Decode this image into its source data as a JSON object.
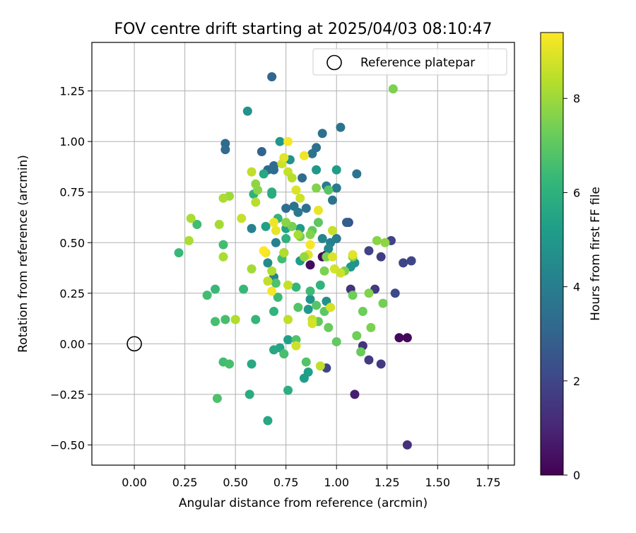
{
  "chart_data": {
    "type": "scatter",
    "title": "FOV centre drift starting at 2025/04/03 08:10:47",
    "xlabel": "Angular distance from reference (arcmin)",
    "ylabel": "Rotation from reference (arcmin)",
    "xlim": [
      -0.21,
      1.88
    ],
    "ylim": [
      -0.6,
      1.49
    ],
    "x_ticks": [
      0.0,
      0.25,
      0.5,
      0.75,
      1.0,
      1.25,
      1.5,
      1.75
    ],
    "x_tick_labels": [
      "0.00",
      "0.25",
      "0.50",
      "0.75",
      "1.00",
      "1.25",
      "1.50",
      "1.75"
    ],
    "y_ticks": [
      -0.5,
      -0.25,
      0.0,
      0.25,
      0.5,
      0.75,
      1.0,
      1.25
    ],
    "y_tick_labels": [
      "−0.50",
      "−0.25",
      "0.00",
      "0.25",
      "0.50",
      "0.75",
      "1.00",
      "1.25"
    ],
    "grid": true,
    "legend": {
      "placement": "top-right",
      "entries": [
        {
          "label": "Reference platepar",
          "marker": "open-circle"
        }
      ]
    },
    "reference_point": {
      "x": 0.0,
      "y": 0.0
    },
    "colorbar": {
      "label": "Hours from first FF file",
      "colormap": "viridis",
      "range": [
        0,
        9.4
      ],
      "ticks": [
        0,
        2,
        4,
        6,
        8
      ],
      "tick_labels": [
        "0",
        "2",
        "4",
        "6",
        "8"
      ]
    },
    "colormap_stops": [
      "#440154",
      "#482878",
      "#3e4989",
      "#31688e",
      "#26828e",
      "#1f9e89",
      "#35b779",
      "#6ece58",
      "#b5de2b",
      "#fde725"
    ],
    "series": [
      {
        "points": [
          [
            0.93,
            0.43,
            0.3
          ],
          [
            0.95,
            0.44,
            0.3
          ],
          [
            1.31,
            0.03,
            0.2
          ],
          [
            1.35,
            0.03,
            0.2
          ],
          [
            1.09,
            -0.25,
            0.8
          ],
          [
            1.35,
            -0.5,
            1.3
          ],
          [
            1.07,
            0.27,
            1.4
          ],
          [
            1.13,
            -0.01,
            1.4
          ],
          [
            1.16,
            -0.08,
            1.6
          ],
          [
            1.22,
            -0.1,
            1.6
          ],
          [
            1.19,
            0.27,
            1.6
          ],
          [
            1.22,
            0.43,
            1.7
          ],
          [
            1.16,
            0.46,
            1.9
          ],
          [
            1.27,
            0.51,
            1.9
          ],
          [
            1.33,
            0.4,
            2.0
          ],
          [
            1.37,
            0.41,
            2.0
          ],
          [
            1.29,
            0.25,
            2.1
          ],
          [
            0.95,
            -0.12,
            2.0
          ],
          [
            1.06,
            0.6,
            2.3
          ],
          [
            0.68,
            1.32,
            3.1
          ],
          [
            0.45,
            0.99,
            3.2
          ],
          [
            0.45,
            0.96,
            3.3
          ],
          [
            0.63,
            0.95,
            3.0
          ],
          [
            0.66,
            0.86,
            3.2
          ],
          [
            0.69,
            0.88,
            3.3
          ],
          [
            0.83,
            0.82,
            3.3
          ],
          [
            0.88,
            0.94,
            3.6
          ],
          [
            0.9,
            0.97,
            3.5
          ],
          [
            0.93,
            1.04,
            3.5
          ],
          [
            1.02,
            1.07,
            3.6
          ],
          [
            1.1,
            0.84,
            3.6
          ],
          [
            0.95,
            0.78,
            3.8
          ],
          [
            1.0,
            0.77,
            3.9
          ],
          [
            0.98,
            0.71,
            3.6
          ],
          [
            0.69,
            0.86,
            3.3
          ],
          [
            0.75,
            0.67,
            3.4
          ],
          [
            0.79,
            0.68,
            3.6
          ],
          [
            0.85,
            0.67,
            3.5
          ],
          [
            0.81,
            0.65,
            3.8
          ],
          [
            0.87,
            0.39,
            0.3
          ],
          [
            1.0,
            0.52,
            3.9
          ],
          [
            1.05,
            0.6,
            2.8
          ],
          [
            0.97,
            0.5,
            4.1
          ],
          [
            0.93,
            0.52,
            4.3
          ],
          [
            0.96,
            0.47,
            4.4
          ],
          [
            0.74,
            0.45,
            3.9
          ],
          [
            0.7,
            0.5,
            4.1
          ],
          [
            0.69,
            0.33,
            4.2
          ],
          [
            0.58,
            0.57,
            4.2
          ],
          [
            0.66,
            0.4,
            4.5
          ],
          [
            0.87,
            0.22,
            4.8
          ],
          [
            0.95,
            0.21,
            4.7
          ],
          [
            1.09,
            0.4,
            4.8
          ],
          [
            1.07,
            0.38,
            4.9
          ],
          [
            0.56,
            1.15,
            4.8
          ],
          [
            0.77,
            0.91,
            4.8
          ],
          [
            0.9,
            0.86,
            5.0
          ],
          [
            1.0,
            0.86,
            5.2
          ],
          [
            0.72,
            1.0,
            5.0
          ],
          [
            0.65,
            0.58,
            5.3
          ],
          [
            0.75,
            0.57,
            5.4
          ],
          [
            0.82,
            0.57,
            5.1
          ],
          [
            0.82,
            0.41,
            5.2
          ],
          [
            0.86,
            0.17,
            5.0
          ],
          [
            0.86,
            -0.14,
            5.3
          ],
          [
            0.84,
            -0.17,
            5.2
          ],
          [
            0.76,
            0.02,
            5.3
          ],
          [
            0.72,
            -0.02,
            5.5
          ],
          [
            0.69,
            -0.03,
            5.6
          ],
          [
            0.66,
            -0.38,
            5.6
          ],
          [
            0.58,
            -0.1,
            5.7
          ],
          [
            0.57,
            -0.25,
            5.8
          ],
          [
            0.76,
            -0.23,
            5.9
          ],
          [
            0.64,
            0.84,
            5.6
          ],
          [
            0.59,
            0.74,
            6.0
          ],
          [
            0.68,
            0.75,
            5.9
          ],
          [
            0.68,
            0.74,
            5.8
          ],
          [
            0.75,
            0.52,
            6.0
          ],
          [
            0.71,
            0.62,
            6.1
          ],
          [
            0.6,
            0.12,
            6.2
          ],
          [
            0.92,
            0.29,
            6.1
          ],
          [
            0.87,
            0.26,
            6.4
          ],
          [
            0.69,
            0.16,
            6.1
          ],
          [
            0.71,
            0.23,
            6.4
          ],
          [
            0.8,
            0.28,
            6.2
          ],
          [
            0.73,
            0.42,
            6.5
          ],
          [
            0.54,
            0.27,
            6.3
          ],
          [
            0.4,
            0.27,
            6.3
          ],
          [
            0.36,
            0.24,
            6.5
          ],
          [
            0.4,
            0.11,
            6.6
          ],
          [
            0.45,
            0.12,
            6.6
          ],
          [
            0.44,
            0.49,
            6.5
          ],
          [
            0.31,
            0.59,
            6.5
          ],
          [
            0.22,
            0.45,
            6.3
          ],
          [
            0.44,
            -0.09,
            6.5
          ],
          [
            0.47,
            -0.1,
            6.6
          ],
          [
            0.41,
            -0.27,
            6.7
          ],
          [
            0.7,
            0.3,
            6.7
          ],
          [
            0.74,
            -0.05,
            6.6
          ],
          [
            0.8,
            0.02,
            6.8
          ],
          [
            0.85,
            -0.09,
            6.8
          ],
          [
            0.81,
            0.18,
            6.8
          ],
          [
            0.9,
            0.19,
            6.9
          ],
          [
            0.94,
            0.16,
            7.0
          ],
          [
            0.91,
            0.11,
            7.1
          ],
          [
            1.0,
            0.01,
            7.1
          ],
          [
            1.12,
            -0.04,
            7.2
          ],
          [
            1.1,
            0.04,
            7.3
          ],
          [
            1.13,
            0.16,
            7.3
          ],
          [
            1.17,
            0.08,
            7.5
          ],
          [
            1.23,
            0.2,
            7.4
          ],
          [
            1.16,
            0.25,
            7.6
          ],
          [
            1.08,
            0.24,
            7.3
          ],
          [
            0.96,
            0.08,
            7.2
          ],
          [
            0.94,
            0.36,
            7.5
          ],
          [
            1.04,
            0.36,
            7.5
          ],
          [
            1.08,
            0.43,
            7.6
          ],
          [
            0.95,
            0.43,
            7.5
          ],
          [
            1.2,
            0.51,
            7.7
          ],
          [
            1.24,
            0.5,
            7.8
          ],
          [
            1.28,
            1.26,
            7.5
          ],
          [
            0.91,
            0.6,
            7.0
          ],
          [
            0.88,
            0.56,
            7.1
          ],
          [
            0.87,
            0.54,
            7.6
          ],
          [
            0.82,
            0.53,
            7.4
          ],
          [
            0.78,
            0.58,
            7.4
          ],
          [
            0.75,
            0.6,
            7.7
          ],
          [
            0.61,
            0.76,
            7.7
          ],
          [
            0.6,
            0.79,
            7.8
          ],
          [
            0.47,
            0.73,
            8.0
          ],
          [
            0.44,
            0.72,
            8.2
          ],
          [
            0.42,
            0.59,
            8.1
          ],
          [
            0.28,
            0.62,
            8.2
          ],
          [
            0.27,
            0.51,
            8.2
          ],
          [
            0.5,
            0.12,
            8.3
          ],
          [
            0.58,
            0.37,
            8.1
          ],
          [
            0.68,
            0.36,
            8.3
          ],
          [
            0.74,
            0.45,
            8.3
          ],
          [
            0.66,
            0.31,
            8.5
          ],
          [
            0.76,
            0.29,
            8.6
          ],
          [
            0.76,
            0.12,
            8.5
          ],
          [
            0.8,
            -0.01,
            8.7
          ],
          [
            0.88,
            0.12,
            8.6
          ],
          [
            0.88,
            0.1,
            8.8
          ],
          [
            0.97,
            0.18,
            8.8
          ],
          [
            0.99,
            0.37,
            8.8
          ],
          [
            1.02,
            0.35,
            8.7
          ],
          [
            0.98,
            0.43,
            8.9
          ],
          [
            1.08,
            0.44,
            9.0
          ],
          [
            0.92,
            -0.11,
            8.5
          ],
          [
            0.76,
            0.85,
            8.6
          ],
          [
            0.78,
            0.82,
            8.4
          ],
          [
            0.73,
            0.89,
            8.7
          ],
          [
            0.74,
            0.92,
            9.0
          ],
          [
            0.82,
            0.72,
            8.7
          ],
          [
            0.8,
            0.76,
            8.9
          ],
          [
            0.84,
            0.93,
            9.2
          ],
          [
            0.86,
            0.44,
            9.0
          ],
          [
            0.87,
            0.49,
            9.3
          ],
          [
            0.7,
            0.56,
            9.1
          ],
          [
            0.69,
            0.6,
            9.2
          ],
          [
            0.68,
            0.26,
            9.3
          ],
          [
            0.65,
            0.45,
            9.2
          ],
          [
            0.64,
            0.46,
            9.4
          ],
          [
            0.76,
            1.0,
            9.3
          ],
          [
            0.58,
            0.85,
            8.5
          ],
          [
            0.53,
            0.62,
            8.6
          ],
          [
            0.6,
            0.7,
            8.4
          ],
          [
            0.91,
            0.66,
            9.1
          ],
          [
            0.44,
            0.43,
            8.2
          ],
          [
            0.98,
            0.56,
            8.6
          ],
          [
            0.96,
            0.76,
            6.9
          ],
          [
            0.9,
            0.77,
            7.6
          ],
          [
            0.84,
            0.43,
            7.9
          ],
          [
            0.81,
            0.54,
            8.2
          ]
        ]
      }
    ]
  }
}
